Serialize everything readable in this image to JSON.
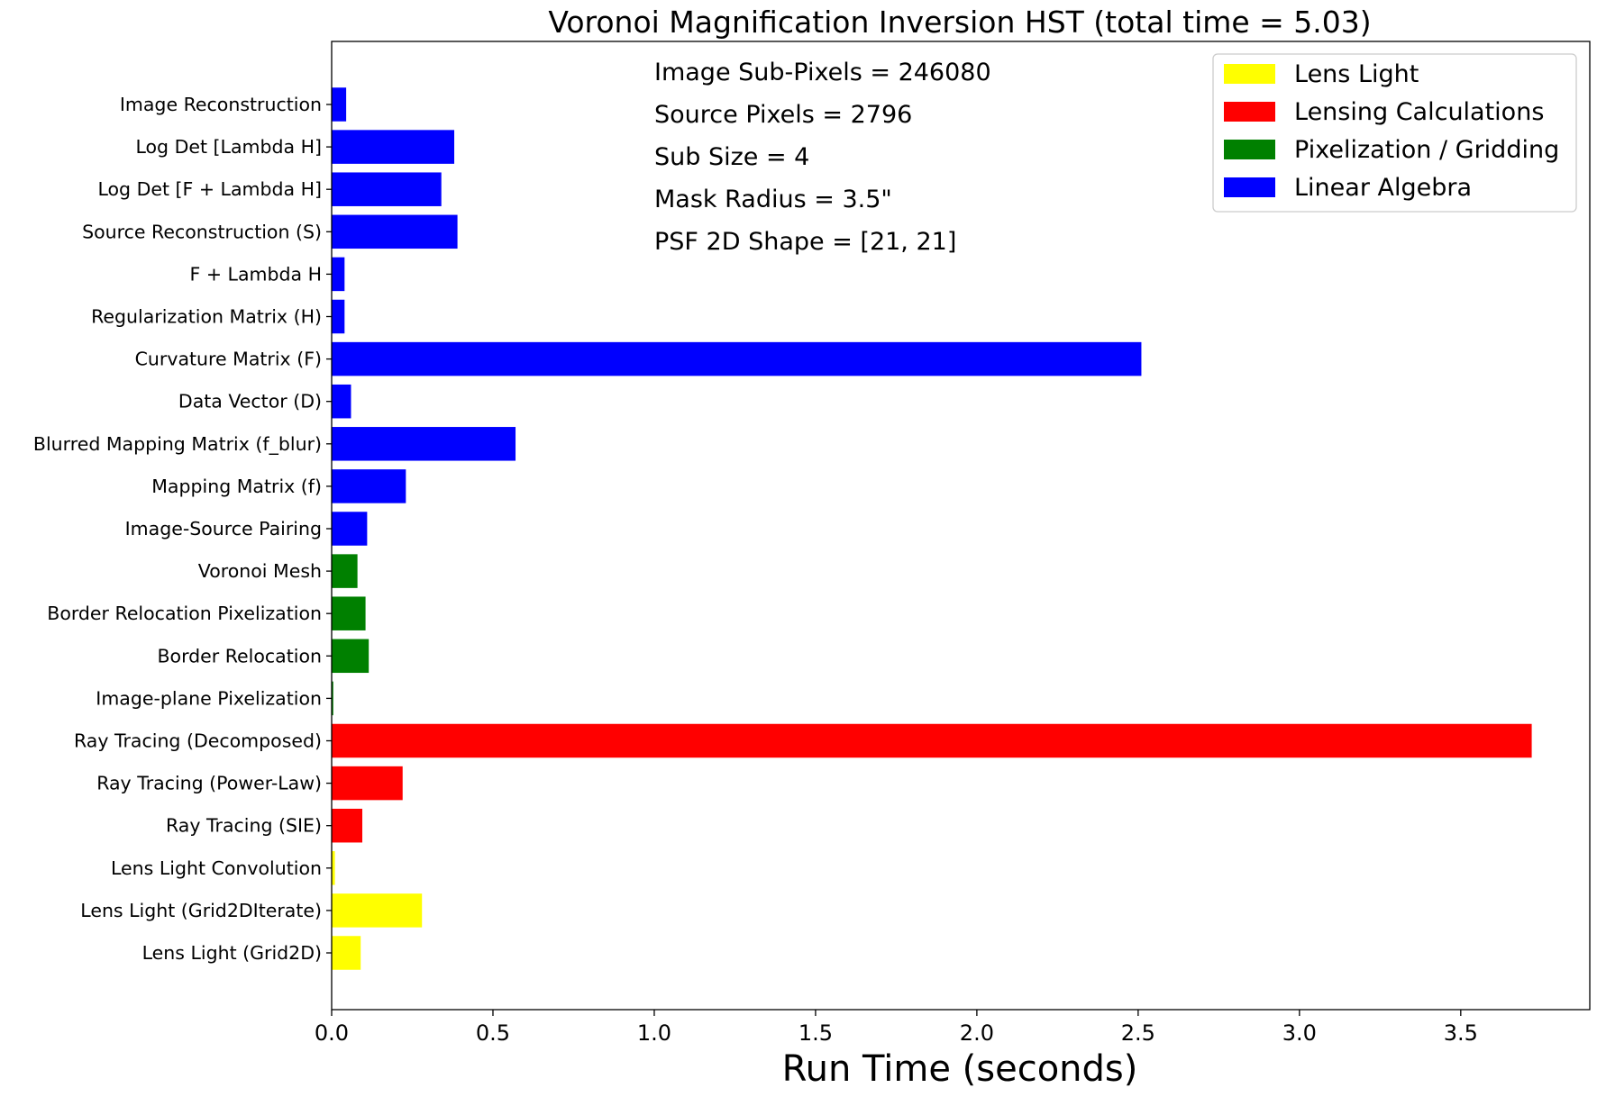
{
  "chart_data": {
    "type": "bar",
    "orientation": "horizontal",
    "title": "Voronoi Magnification Inversion HST (total time = 5.03)",
    "xlabel": "Run Time (seconds)",
    "ylabel": "",
    "xlim": [
      0,
      3.9
    ],
    "xticks": [
      "0.0",
      "0.5",
      "1.0",
      "1.5",
      "2.0",
      "2.5",
      "3.0",
      "3.5"
    ],
    "grid": false,
    "legend_position": "top-right",
    "legend": [
      {
        "label": "Lens Light",
        "color": "#ffff00"
      },
      {
        "label": "Lensing Calculations",
        "color": "#ff0000"
      },
      {
        "label": "Pixelization / Gridding",
        "color": "#008000"
      },
      {
        "label": "Linear Algebra",
        "color": "#0000ff"
      }
    ],
    "annotations": [
      "Image Sub-Pixels = 246080",
      "Source Pixels = 2796",
      "Sub Size = 4",
      "Mask Radius = 3.5\"",
      "PSF 2D Shape = [21, 21]"
    ],
    "bars": [
      {
        "label": "Lens Light (Grid2D)",
        "value": 0.09,
        "color": "#ffff00"
      },
      {
        "label": "Lens Light (Grid2DIterate)",
        "value": 0.28,
        "color": "#ffff00"
      },
      {
        "label": "Lens Light Convolution",
        "value": 0.01,
        "color": "#ffff00"
      },
      {
        "label": "Ray Tracing (SIE)",
        "value": 0.095,
        "color": "#ff0000"
      },
      {
        "label": "Ray Tracing (Power-Law)",
        "value": 0.22,
        "color": "#ff0000"
      },
      {
        "label": "Ray Tracing (Decomposed)",
        "value": 3.72,
        "color": "#ff0000"
      },
      {
        "label": "Image-plane Pixelization",
        "value": 0.005,
        "color": "#008000"
      },
      {
        "label": "Border Relocation",
        "value": 0.115,
        "color": "#008000"
      },
      {
        "label": "Border Relocation Pixelization",
        "value": 0.105,
        "color": "#008000"
      },
      {
        "label": "Voronoi Mesh",
        "value": 0.08,
        "color": "#008000"
      },
      {
        "label": "Image-Source Pairing",
        "value": 0.11,
        "color": "#0000ff"
      },
      {
        "label": "Mapping Matrix (f)",
        "value": 0.23,
        "color": "#0000ff"
      },
      {
        "label": "Blurred Mapping Matrix (f_blur)",
        "value": 0.57,
        "color": "#0000ff"
      },
      {
        "label": "Data Vector (D)",
        "value": 0.06,
        "color": "#0000ff"
      },
      {
        "label": "Curvature Matrix (F)",
        "value": 2.51,
        "color": "#0000ff"
      },
      {
        "label": "Regularization Matrix (H)",
        "value": 0.04,
        "color": "#0000ff"
      },
      {
        "label": "F + Lambda H",
        "value": 0.04,
        "color": "#0000ff"
      },
      {
        "label": "Source Reconstruction (S)",
        "value": 0.39,
        "color": "#0000ff"
      },
      {
        "label": "Log Det [F + Lambda H]",
        "value": 0.34,
        "color": "#0000ff"
      },
      {
        "label": "Log Det [Lambda H]",
        "value": 0.38,
        "color": "#0000ff"
      },
      {
        "label": "Image Reconstruction",
        "value": 0.045,
        "color": "#0000ff"
      }
    ]
  }
}
